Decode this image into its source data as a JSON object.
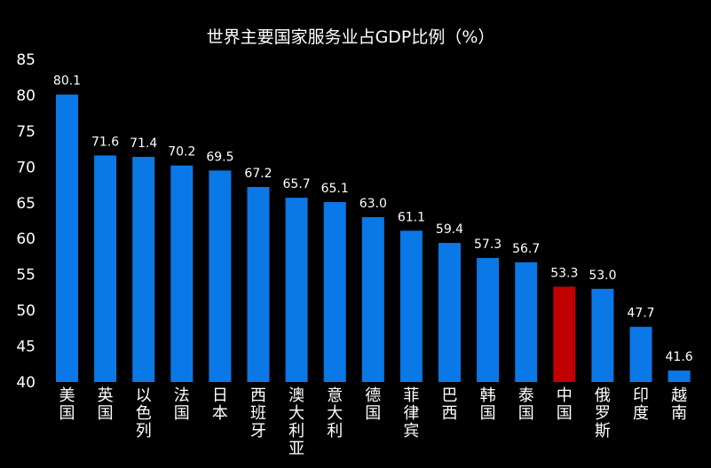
{
  "chart_data": {
    "type": "bar",
    "title": "世界主要国家服务业占GDP比例（%）",
    "categories": [
      "美国",
      "英国",
      "以色列",
      "法国",
      "日本",
      "西班牙",
      "澳大利亚",
      "意大利",
      "德国",
      "菲律宾",
      "巴西",
      "韩国",
      "泰国",
      "中国",
      "俄罗斯",
      "印度",
      "越南"
    ],
    "values": [
      80.1,
      71.6,
      71.4,
      70.2,
      69.5,
      67.2,
      65.7,
      65.1,
      63.0,
      61.1,
      59.4,
      57.3,
      56.7,
      53.3,
      53.0,
      47.7,
      41.6
    ],
    "value_labels": [
      "80.1",
      "71.6",
      "71.4",
      "70.2",
      "69.5",
      "67.2",
      "65.7",
      "65.1",
      "63.0",
      "61.1",
      "59.4",
      "57.3",
      "56.7",
      "53.3",
      "53.0",
      "47.7",
      "41.6"
    ],
    "yticks": [
      "40",
      "45",
      "50",
      "55",
      "60",
      "65",
      "70",
      "75",
      "80",
      "85"
    ],
    "ylim": [
      40,
      85
    ],
    "xlabel": "",
    "ylabel": "",
    "grid": false,
    "legend": "none",
    "colors": {
      "default": "#0a78e6",
      "highlight": "#c00000",
      "background": "#000000",
      "text": "#ffffff"
    },
    "highlight_category": "中国"
  }
}
